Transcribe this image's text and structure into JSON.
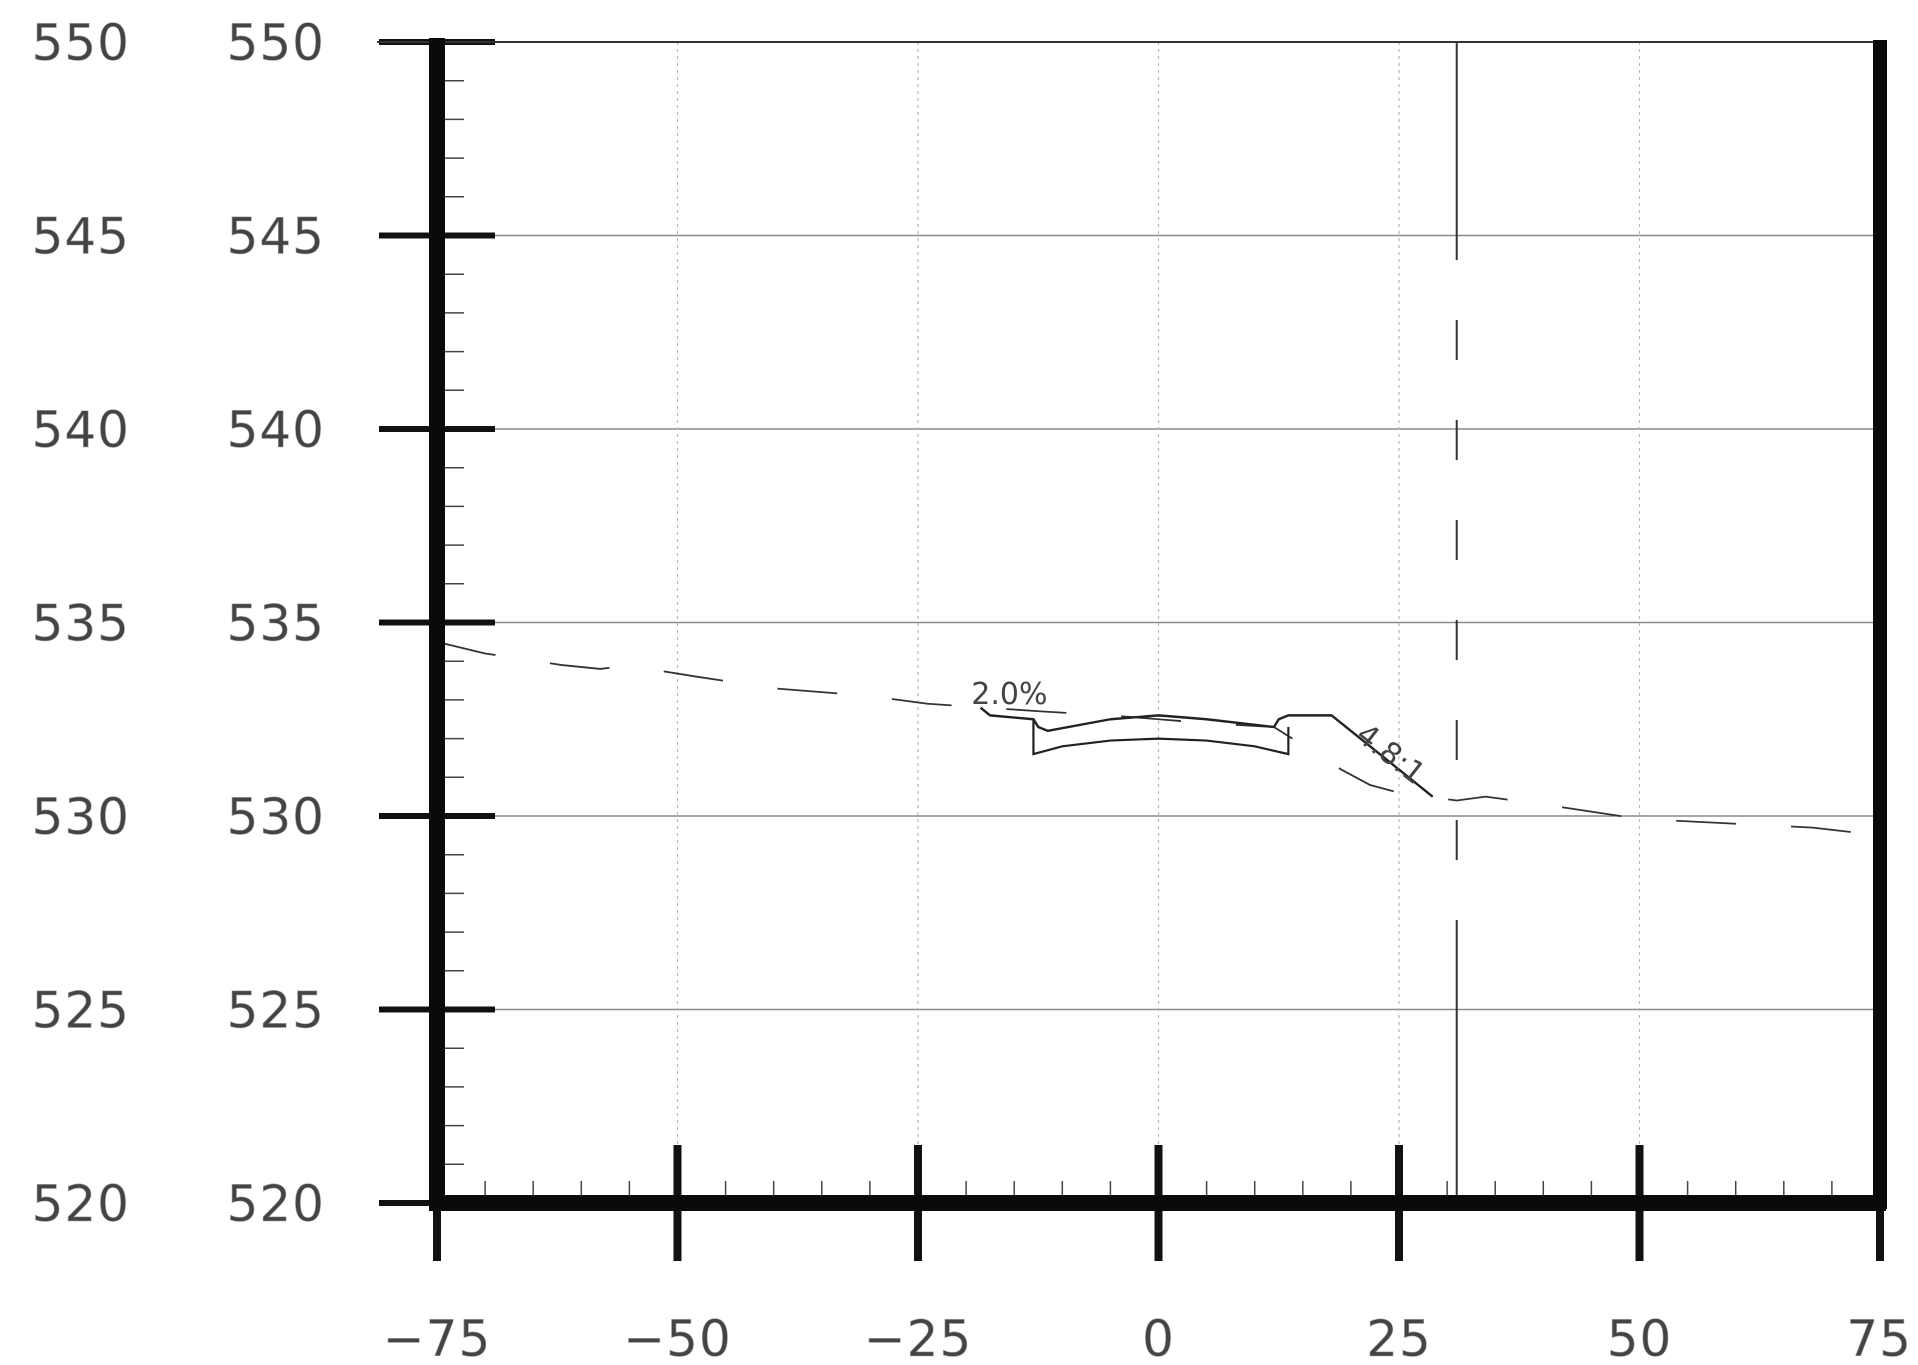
{
  "chart_data": {
    "type": "line",
    "title": "",
    "xlabel": "",
    "ylabel": "",
    "xlim": [
      -75,
      75
    ],
    "ylim": [
      520,
      550
    ],
    "x_ticks": [
      -75,
      -50,
      -25,
      0,
      25,
      50,
      75
    ],
    "x_tick_labels": [
      "−75",
      "−50",
      "−25",
      "0",
      "25",
      "50",
      "75"
    ],
    "y_ticks": [
      520,
      525,
      530,
      535,
      540,
      545,
      550
    ],
    "y_tick_labels": [
      "520",
      "525",
      "530",
      "535",
      "540",
      "545",
      "550"
    ],
    "grid": true,
    "series": [
      {
        "style": "dashed",
        "x": [
          -75,
          -70,
          -62,
          -58,
          -55,
          -53,
          -48,
          -40,
          -30,
          -24,
          -18,
          -12,
          -5,
          0,
          5,
          12,
          19,
          22,
          25,
          28,
          31,
          34,
          40,
          48,
          52,
          60,
          68,
          75
        ],
        "y": [
          534.5,
          534.2,
          533.9,
          533.8,
          533.9,
          533.8,
          533.6,
          533.3,
          533.1,
          532.9,
          532.8,
          532.7,
          532.6,
          532.5,
          532.4,
          532.3,
          531.2,
          530.8,
          530.6,
          530.5,
          530.4,
          530.5,
          530.3,
          530.0,
          529.9,
          529.8,
          529.7,
          529.5
        ]
      },
      {
        "style": "solid",
        "x": [
          -18.5,
          -17.5,
          -13,
          -12.5,
          -11.5,
          -5,
          0,
          5,
          12,
          12.5,
          13.5,
          18,
          28.5
        ],
        "y": [
          532.8,
          532.6,
          532.5,
          532.3,
          532.2,
          532.5,
          532.6,
          532.5,
          532.3,
          532.5,
          532.6,
          532.6,
          530.5
        ]
      }
    ],
    "subgrade": {
      "x": [
        -13,
        -13,
        -10,
        -5,
        0,
        5,
        10,
        13.5,
        13.5
      ],
      "y": [
        532.5,
        531.6,
        531.8,
        531.95,
        532.0,
        531.95,
        531.8,
        531.6,
        532.3
      ]
    },
    "markers": {
      "vertical_line_x": 31,
      "minor_gridline_x": 25
    },
    "annotations": [
      {
        "text": "2.0%",
        "x": -15.5,
        "y": 532.9
      },
      {
        "text": "4.8:1",
        "x": 23.5,
        "y": 531.4
      }
    ]
  }
}
